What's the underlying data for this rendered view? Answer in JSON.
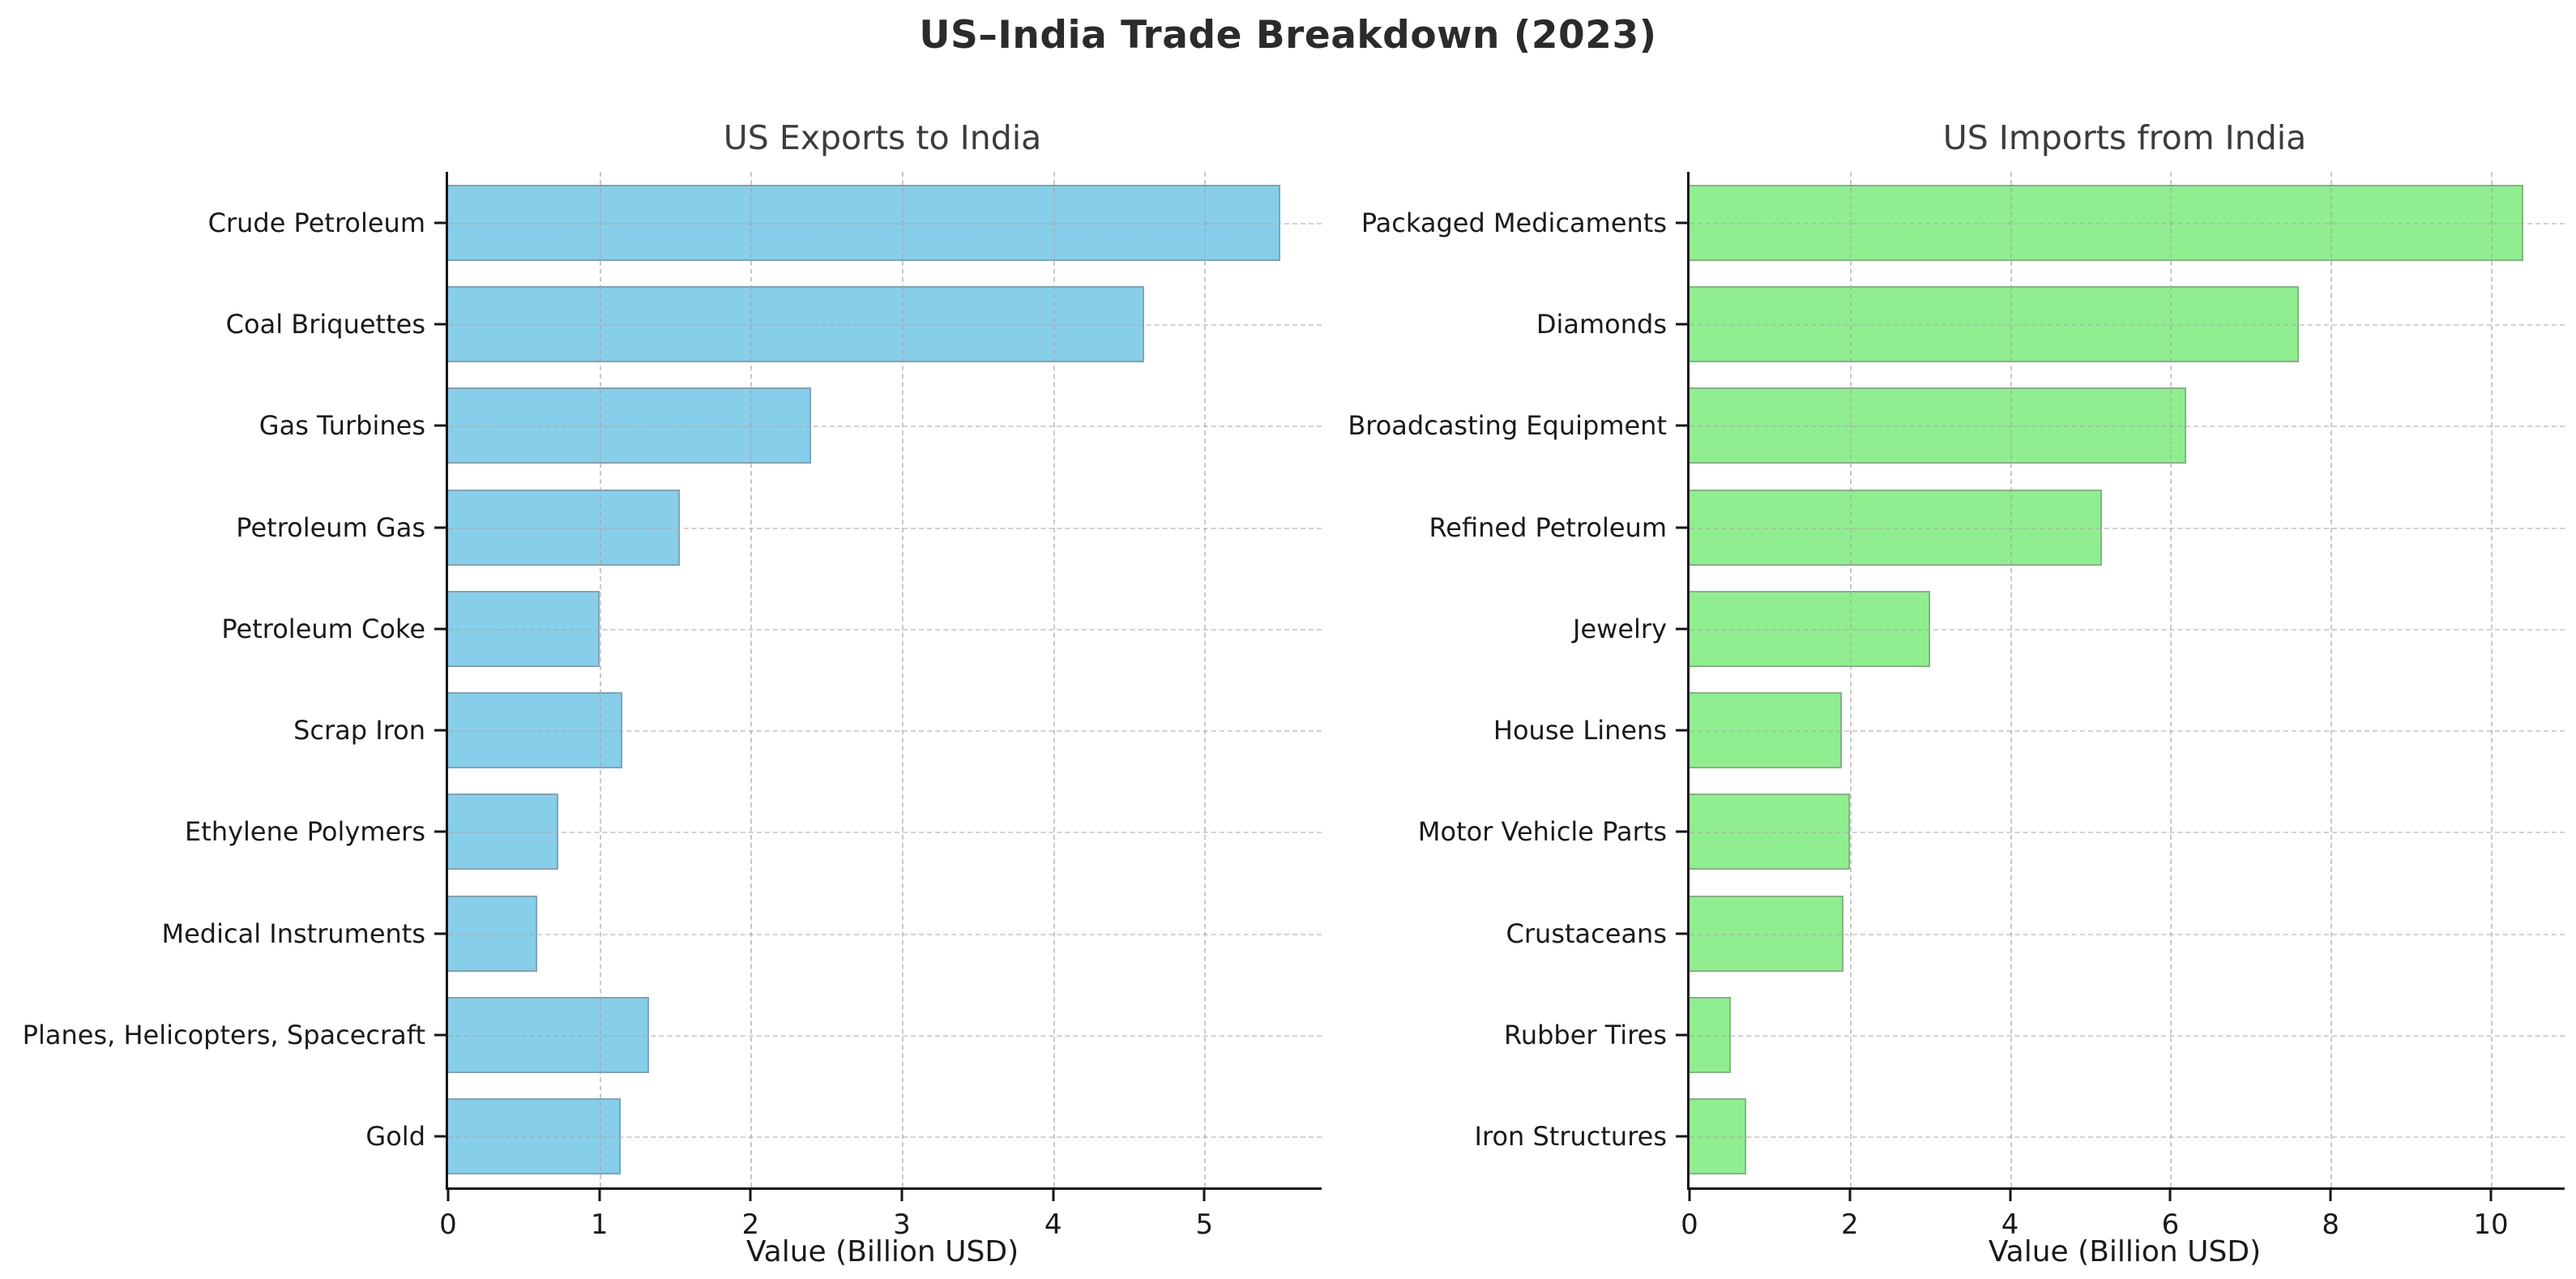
{
  "title": "US–India Trade Breakdown (2023)",
  "colors": {
    "background": "#ffffff",
    "title_text": "#2b2b2b",
    "subtitle_text": "#3c3c3c",
    "axis": "#151515",
    "gridline": "#a5a5a5",
    "export_bar": "#87CEEB",
    "import_bar": "#90EE90",
    "bar_edge": "#808080"
  },
  "chart_data": [
    {
      "type": "bar",
      "orientation": "horizontal",
      "title": "US Exports to India",
      "xlabel": "Value (Billion USD)",
      "categories": [
        "Crude Petroleum",
        "Coal Briquettes",
        "Gas Turbines",
        "Petroleum Gas",
        "Petroleum Coke",
        "Scrap Iron",
        "Ethylene Polymers",
        "Medical Instruments",
        "Planes, Helicopters, Spacecraft",
        "Gold"
      ],
      "values": [
        5.5,
        4.6,
        2.4,
        1.53,
        1.0,
        1.15,
        0.73,
        0.59,
        1.33,
        1.14
      ],
      "xticks": [
        0,
        1,
        2,
        3,
        4,
        5
      ],
      "xlim": [
        0,
        5.775
      ],
      "grid": "dashed",
      "legend": "none",
      "bar_color": "#87CEEB",
      "bar_edge_color": "#808080"
    },
    {
      "type": "bar",
      "orientation": "horizontal",
      "title": "US Imports from India",
      "xlabel": "Value (Billion USD)",
      "categories": [
        "Packaged Medicaments",
        "Diamonds",
        "Broadcasting Equipment",
        "Refined Petroleum",
        "Jewelry",
        "House Linens",
        "Motor Vehicle Parts",
        "Crustaceans",
        "Rubber Tires",
        "Iron Structures"
      ],
      "values": [
        10.4,
        7.6,
        6.2,
        5.15,
        3.0,
        1.9,
        2.0,
        1.92,
        0.52,
        0.71
      ],
      "xticks": [
        0,
        2,
        4,
        6,
        8,
        10
      ],
      "xlim": [
        0,
        10.92
      ],
      "grid": "dashed",
      "legend": "none",
      "bar_color": "#90EE90",
      "bar_edge_color": "#808080"
    }
  ]
}
